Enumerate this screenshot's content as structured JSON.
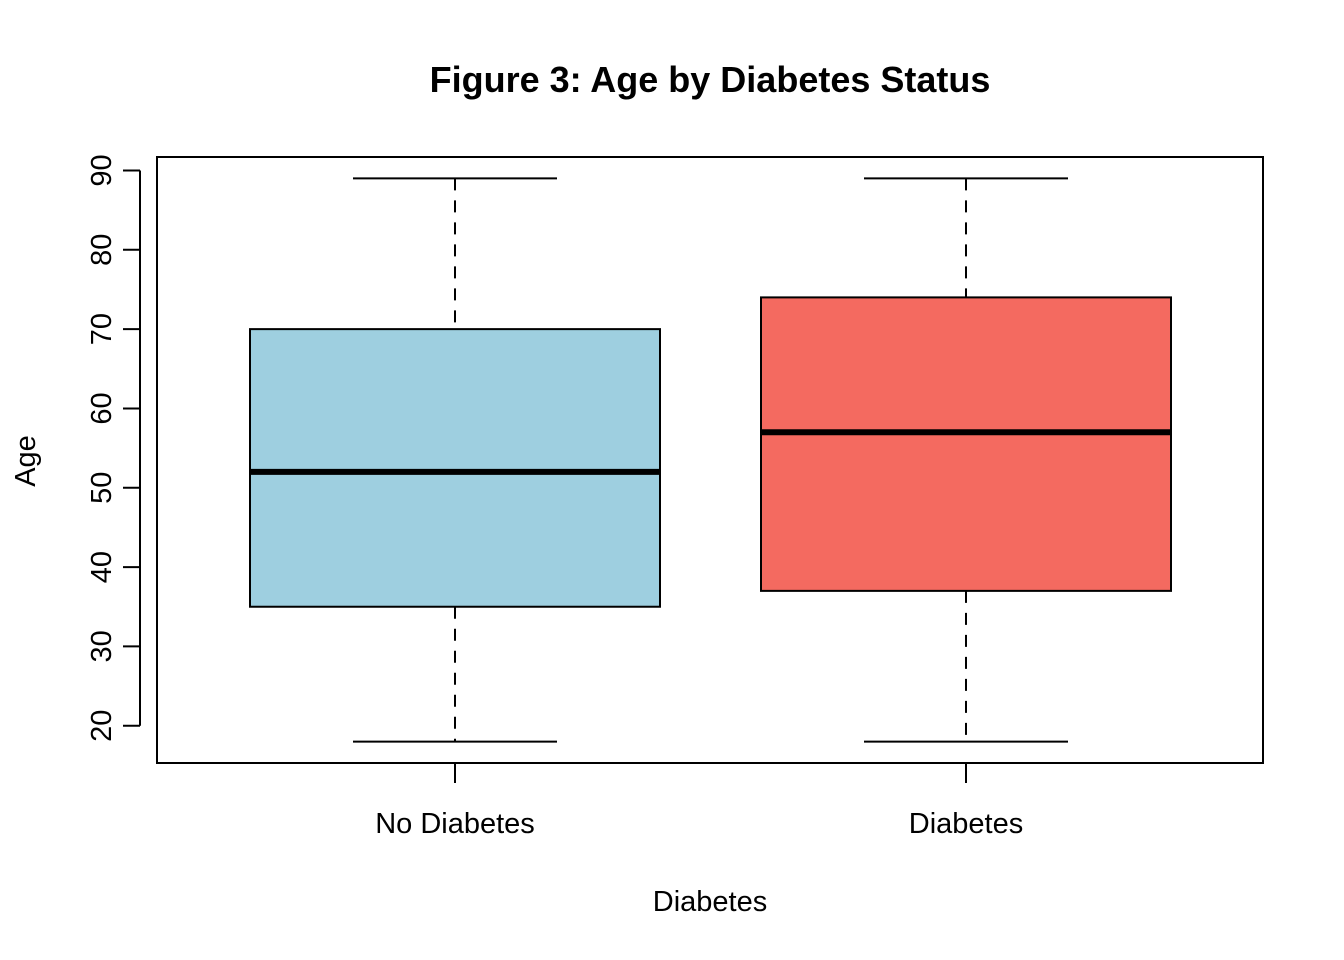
{
  "chart_data": {
    "type": "boxplot",
    "title": "Figure 3: Age by Diabetes Status",
    "xlabel": "Diabetes",
    "ylabel": "Age",
    "categories": [
      "No Diabetes",
      "Diabetes"
    ],
    "boxes": [
      {
        "category": "No Diabetes",
        "min": 18,
        "q1": 35,
        "median": 52,
        "q3": 70,
        "max": 89,
        "color": "#9ECFE0"
      },
      {
        "category": "Diabetes",
        "min": 18,
        "q1": 37,
        "median": 57,
        "q3": 74,
        "max": 89,
        "color": "#F46A60"
      }
    ],
    "yticks": [
      20,
      30,
      40,
      50,
      60,
      70,
      80,
      90
    ],
    "ylim": [
      15.3,
      91.7
    ],
    "grid": false,
    "legend": "none"
  }
}
